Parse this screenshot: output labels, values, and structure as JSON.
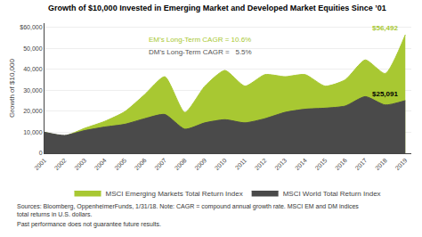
{
  "chart_data": {
    "type": "area",
    "title": "Growth of $10,000 Invested in Emerging Market and Developed Market Equities Since ’01",
    "ylabel": "Growth of $10,000",
    "x": [
      2001,
      2002,
      2003,
      2004,
      2005,
      2006,
      2007,
      2008,
      2009,
      2010,
      2011,
      2012,
      2013,
      2014,
      2015,
      2016,
      2017,
      2018,
      2019
    ],
    "series": [
      {
        "name": "MSCI Emerging Markets Total Return Index",
        "color": "#a8c832",
        "values": [
          10000,
          8300,
          11900,
          15200,
          19800,
          28000,
          36500,
          19500,
          32000,
          39500,
          32000,
          37500,
          36500,
          37500,
          32000,
          35000,
          44500,
          38000,
          56492
        ]
      },
      {
        "name": "MSCI World Total Return Index",
        "color": "#4a4a4a",
        "values": [
          10000,
          8500,
          10800,
          12500,
          13800,
          16500,
          18500,
          11500,
          14500,
          16000,
          14500,
          16500,
          19500,
          21000,
          21500,
          22500,
          27000,
          23000,
          25091
        ]
      }
    ],
    "xlim": [
      2001,
      2019.3
    ],
    "xticks": [
      2001,
      2002,
      2003,
      2004,
      2005,
      2006,
      2007,
      2008,
      2009,
      2010,
      2011,
      2012,
      2013,
      2014,
      2015,
      2016,
      2017,
      2018,
      2019
    ],
    "ylim": [
      0,
      62000
    ],
    "yticks": [
      0,
      {
        "value": 10000,
        "label": "10,000"
      },
      {
        "value": 20000,
        "label": "20,000"
      },
      {
        "value": 30000,
        "label": "30,000"
      },
      {
        "value": 40000,
        "label": "40,000"
      },
      {
        "value": 50000,
        "label": "50,000"
      },
      {
        "value": 60000,
        "label": "$60,000"
      }
    ],
    "grid": true,
    "legend": "bottom",
    "annotations": [
      {
        "text": "$56,492",
        "x": 2019,
        "y": 56492,
        "color": "#a8c832"
      },
      {
        "text": "$25,091",
        "x": 2019,
        "y": 25091,
        "color": "black"
      },
      {
        "text": "EM’s Long-Term CAGR = 10.6%",
        "color": "#a8c832"
      },
      {
        "text": "DM’s Long-Term CAGR =   5.5%",
        "color": "#555555"
      }
    ],
    "footnotes": [
      {
        "text": "Sources: Bloomberg, OppenheimerFunds, 1/31/18. Note: CAGR = compound annual growth rate. MSCI EM and DM indices\ntotal returns in U.S. dollars. ",
        "color": "#333333"
      },
      {
        "text": "Past performance does not guarantee future results.",
        "color": "#333333"
      }
    ]
  }
}
